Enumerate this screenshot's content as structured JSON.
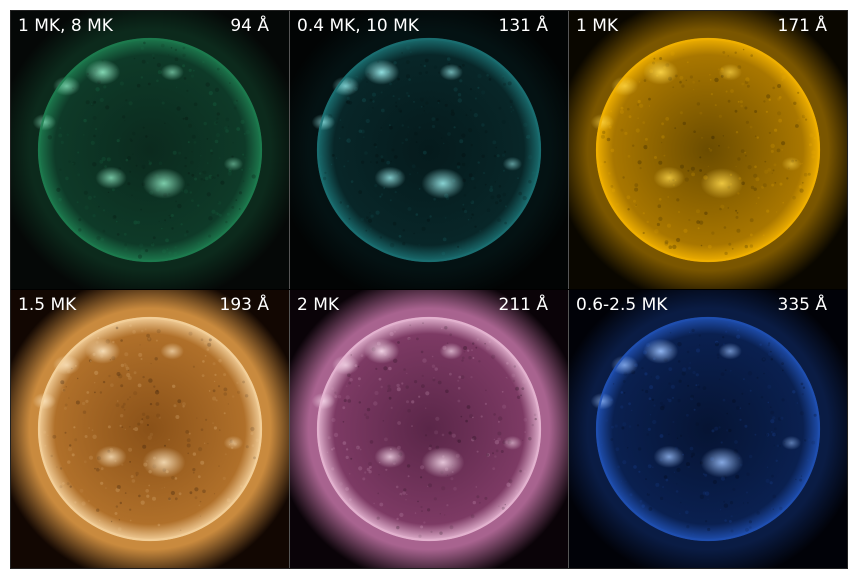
{
  "panels": [
    {
      "temperature": "1 MK, 8 MK",
      "wavelength": "94 Å",
      "colors": {
        "disk_center": "#0b2a1e",
        "disk_edge": "#0e3a28",
        "limb": "#1d7a4e",
        "corona": "#0c2a1c",
        "active": "#8fe8c2",
        "background": "#050807"
      }
    },
    {
      "temperature": "0.4 MK, 10 MK",
      "wavelength": "131 Å",
      "colors": {
        "disk_center": "#051a1c",
        "disk_edge": "#082628",
        "limb": "#1a6e70",
        "corona": "#041213",
        "active": "#9ff2f2",
        "background": "#020404"
      }
    },
    {
      "temperature": "1 MK",
      "wavelength": "171 Å",
      "colors": {
        "disk_center": "#6b4c00",
        "disk_edge": "#a97700",
        "limb": "#f0b000",
        "corona": "#7a5600",
        "active": "#ffd84a",
        "background": "#0a0700"
      }
    },
    {
      "temperature": "1.5 MK",
      "wavelength": "193 Å",
      "colors": {
        "disk_center": "#8a5118",
        "disk_edge": "#b0702a",
        "limb": "#f3cf9a",
        "corona": "#c98a3e",
        "active": "#ffe9c4",
        "background": "#120702"
      }
    },
    {
      "temperature": "2 MK",
      "wavelength": "211 Å",
      "colors": {
        "disk_center": "#5a2648",
        "disk_edge": "#7d3a64",
        "limb": "#e3b3d0",
        "corona": "#a8638f",
        "active": "#fbe0f0",
        "background": "#0a0308"
      }
    },
    {
      "temperature": "0.6-2.5 MK",
      "wavelength": "335 Å",
      "colors": {
        "disk_center": "#061433",
        "disk_edge": "#0a2050",
        "limb": "#1f4fb0",
        "corona": "#0a1c44",
        "active": "#9cc2ff",
        "background": "#010208"
      }
    }
  ]
}
